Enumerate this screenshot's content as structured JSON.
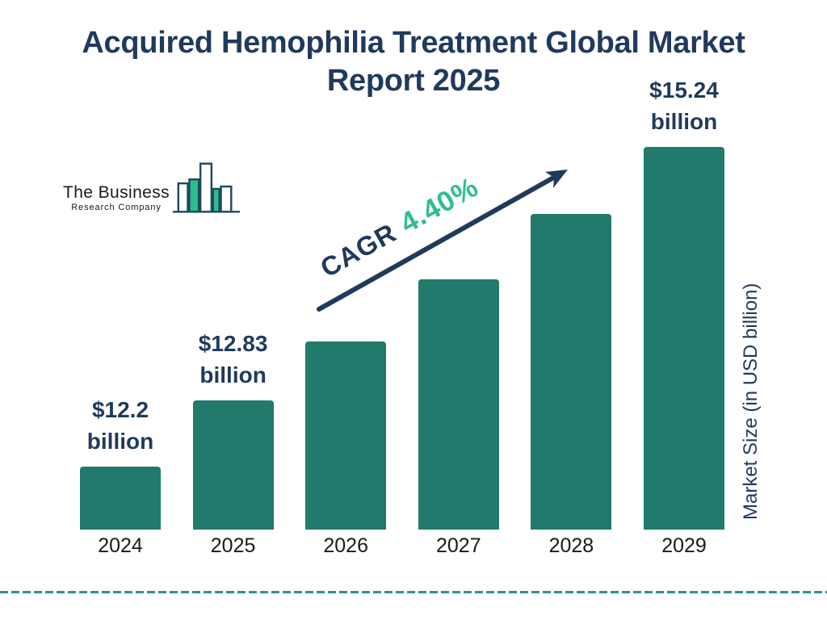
{
  "title": "Acquired Hemophilia Treatment Global Market Report 2025",
  "logo": {
    "line1": "The Business",
    "line2": "Research Company",
    "icon": "bar-chart-logo-icon",
    "outline_color": "#1e4a5f",
    "fill_color": "#2dbe8e"
  },
  "chart_data": {
    "type": "bar",
    "categories": [
      "2024",
      "2025",
      "2026",
      "2027",
      "2028",
      "2029"
    ],
    "values": [
      12.2,
      12.83,
      13.39,
      13.98,
      14.6,
      15.24
    ],
    "value_labels": [
      [
        "$12.2",
        "billion"
      ],
      [
        "$12.83",
        "billion"
      ],
      null,
      null,
      null,
      [
        "$15.24",
        "billion"
      ]
    ],
    "title": "Acquired Hemophilia Treatment Global Market Report 2025",
    "xlabel": "",
    "ylabel": "Market Size (in USD billion)",
    "ylim": [
      11.6,
      15.45
    ],
    "grid": false,
    "legend": false,
    "annotation": {
      "prefix": "CAGR",
      "value": "4.40%"
    },
    "bar_color": "#217a6b",
    "label_color": "#1f3a5c",
    "axis_text_color": "#1a1a1a",
    "annotation_value_color": "#2fbe8c",
    "arrow_color": "#1f3a5c"
  },
  "footer": {
    "dashed_line_color": "#2a948e"
  }
}
